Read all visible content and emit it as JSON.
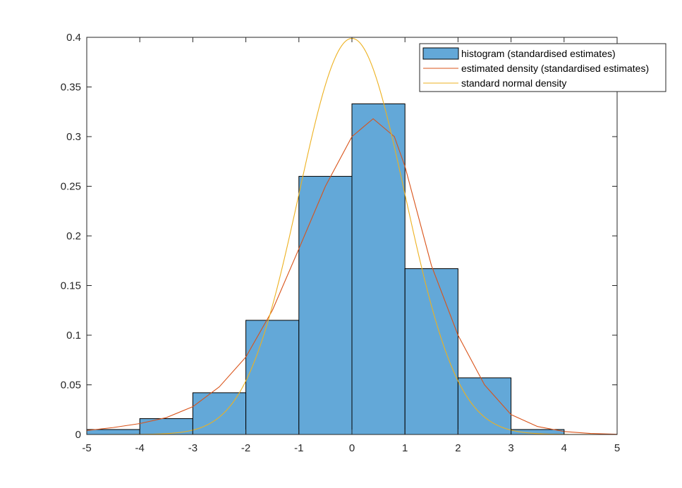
{
  "chart_data": {
    "type": "histogram",
    "title": "",
    "xlabel": "",
    "ylabel": "",
    "xlim": [
      -5,
      5
    ],
    "ylim": [
      0,
      0.4
    ],
    "x_ticks": [
      -5,
      -4,
      -3,
      -2,
      -1,
      0,
      1,
      2,
      3,
      4,
      5
    ],
    "x_tick_labels": [
      "-5",
      "-4",
      "-3",
      "-2",
      "-1",
      "0",
      "1",
      "2",
      "3",
      "4",
      "5"
    ],
    "y_ticks": [
      0,
      0.05,
      0.1,
      0.15,
      0.2,
      0.25,
      0.3,
      0.35,
      0.4
    ],
    "y_tick_labels": [
      "0",
      "0.05",
      "0.1",
      "0.15",
      "0.2",
      "0.25",
      "0.3",
      "0.35",
      "0.4"
    ],
    "grid": false,
    "legend_position": "top-right",
    "histogram": {
      "name": "histogram (standardised estimates)",
      "color": "#63a8d8",
      "edge_color": "#000000",
      "bin_edges": [
        -5,
        -4,
        -3,
        -2,
        -1,
        0,
        1,
        2,
        3,
        4
      ],
      "values": [
        0.005,
        0.016,
        0.042,
        0.115,
        0.26,
        0.333,
        0.167,
        0.057,
        0.005
      ]
    },
    "series": [
      {
        "name": "estimated density (standardised estimates)",
        "type": "line",
        "color": "#d95319",
        "x": [
          -5,
          -4.5,
          -4,
          -3.5,
          -3,
          -2.5,
          -2,
          -1.5,
          -1,
          -0.5,
          0,
          0.4,
          0.8,
          1,
          1.5,
          2,
          2.5,
          3,
          3.5,
          4,
          4.5,
          5
        ],
        "y": [
          0.004,
          0.007,
          0.011,
          0.017,
          0.028,
          0.048,
          0.078,
          0.125,
          0.187,
          0.25,
          0.3,
          0.318,
          0.3,
          0.27,
          0.17,
          0.1,
          0.05,
          0.02,
          0.008,
          0.003,
          0.001,
          0.0002
        ]
      },
      {
        "name": "standard normal density",
        "type": "line",
        "color": "#edb120",
        "function": "standard_normal_pdf",
        "x_range": [
          -5,
          5
        ]
      }
    ]
  }
}
